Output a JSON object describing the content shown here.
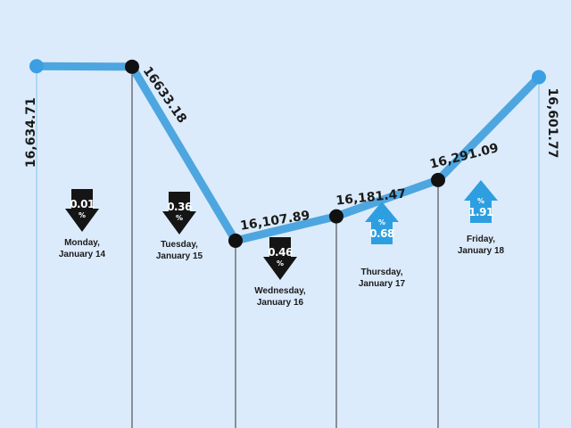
{
  "colors": {
    "background": "#dcebfb",
    "line": "#4ea6e0",
    "endpoint": "#3a9fe3",
    "marker": "#111111",
    "down": "#151515",
    "up": "#2d9fe0",
    "guide_blue": "#7cc4ea",
    "guide_dark": "#333333"
  },
  "chart_data": {
    "type": "line",
    "title": "",
    "xlabel": "",
    "ylabel": "",
    "ylim": [
      16000,
      16700
    ],
    "grid": false,
    "points": [
      {
        "value": 16634.71,
        "label": "16,634.71",
        "day": "Monday,",
        "date": "January 14",
        "change": "0.01",
        "direction": "down",
        "marker": "endpoint"
      },
      {
        "value": 16633.18,
        "label": "16633.18",
        "day": "Tuesday,",
        "date": "January 15",
        "change": "0.36",
        "direction": "down",
        "marker": "dot"
      },
      {
        "value": 16107.89,
        "label": "16,107.89",
        "day": "Wednesday,",
        "date": "January 16",
        "change": "0.46",
        "direction": "down",
        "marker": "dot"
      },
      {
        "value": 16181.47,
        "label": "16,181.47",
        "day": "Thursday,",
        "date": "January 17",
        "change": "0.68",
        "direction": "up",
        "marker": "dot"
      },
      {
        "value": 16291.09,
        "label": "16,291.09",
        "day": "Friday,",
        "date": "January 18",
        "change": "1.91",
        "direction": "up",
        "marker": "dot"
      },
      {
        "value": 16601.77,
        "label": "16,601.77",
        "day": "",
        "date": "",
        "change": "",
        "direction": "",
        "marker": "endpoint"
      }
    ],
    "percent_sign": "%"
  }
}
